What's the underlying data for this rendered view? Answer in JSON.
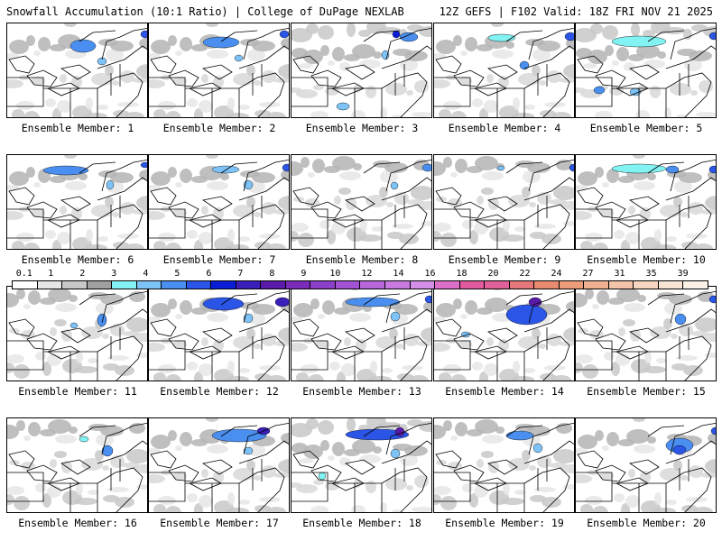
{
  "header": {
    "left": "Snowfall Accumulation (10:1 Ratio) | College of DuPage NEXLAB",
    "right": "12Z GEFS | F102 Valid: 18Z FRI NOV 21 2025"
  },
  "legend": {
    "labels": [
      "0.1",
      "1",
      "2",
      "3",
      "4",
      "5",
      "6",
      "7",
      "8",
      "9",
      "10",
      "12",
      "14",
      "16",
      "18",
      "20",
      "22",
      "24",
      "27",
      "31",
      "35",
      "39"
    ],
    "colors": [
      "#ffffff",
      "#e6e6e6",
      "#c8c8c8",
      "#a0a0a0",
      "#82f2f2",
      "#7ec3f7",
      "#4a8ff0",
      "#2b55e6",
      "#0a1ed8",
      "#3b1fb8",
      "#5a1aa8",
      "#7a2bb8",
      "#8c3fc8",
      "#a352d4",
      "#b766dc",
      "#c87ae0",
      "#d48ee8",
      "#de6fc8",
      "#e05aa0",
      "#e0609a",
      "#e5767a",
      "#e88a70",
      "#ec9c78",
      "#f0b090",
      "#f3c4a8",
      "#f6d6c0",
      "#f8e4d4",
      "#faf0e6"
    ]
  },
  "members": [
    {
      "label": "Ensemble Member: 1",
      "snow": [
        [
          70,
          18,
          28,
          14,
          "#4a8ff0"
        ],
        [
          100,
          38,
          10,
          8,
          "#7ec3f7"
        ],
        [
          148,
          8,
          10,
          8,
          "#2b55e6"
        ]
      ]
    },
    {
      "label": "Ensemble Member: 2",
      "snow": [
        [
          60,
          15,
          40,
          12,
          "#4a8ff0"
        ],
        [
          95,
          35,
          9,
          7,
          "#7ec3f7"
        ],
        [
          145,
          8,
          10,
          8,
          "#2b55e6"
        ]
      ]
    },
    {
      "label": "Ensemble Member: 3",
      "snow": [
        [
          120,
          10,
          20,
          10,
          "#4a8ff0"
        ],
        [
          112,
          8,
          8,
          8,
          "#0a1ed8"
        ],
        [
          50,
          88,
          14,
          8,
          "#7ec3f7"
        ],
        [
          100,
          30,
          8,
          10,
          "#7ec3f7"
        ]
      ]
    },
    {
      "label": "Ensemble Member: 4",
      "snow": [
        [
          60,
          12,
          30,
          8,
          "#82f2f2"
        ],
        [
          95,
          42,
          10,
          9,
          "#4a8ff0"
        ],
        [
          145,
          10,
          12,
          9,
          "#2b55e6"
        ]
      ]
    },
    {
      "label": "Ensemble Member: 5",
      "snow": [
        [
          40,
          14,
          60,
          12,
          "#82f2f2"
        ],
        [
          20,
          70,
          12,
          8,
          "#4a8ff0"
        ],
        [
          60,
          72,
          12,
          8,
          "#7ec3f7"
        ],
        [
          148,
          10,
          10,
          8,
          "#2b55e6"
        ]
      ]
    },
    {
      "label": "Ensemble Member: 6",
      "snow": [
        [
          40,
          12,
          50,
          10,
          "#4a8ff0"
        ],
        [
          110,
          28,
          8,
          10,
          "#7ec3f7"
        ],
        [
          148,
          8,
          10,
          6,
          "#2b55e6"
        ]
      ]
    },
    {
      "label": "Ensemble Member: 7",
      "snow": [
        [
          70,
          12,
          30,
          8,
          "#7ec3f7"
        ],
        [
          105,
          28,
          10,
          10,
          "#7ec3f7"
        ],
        [
          148,
          10,
          10,
          8,
          "#2b55e6"
        ]
      ]
    },
    {
      "label": "Ensemble Member: 8",
      "snow": [
        [
          110,
          30,
          8,
          8,
          "#7ec3f7"
        ],
        [
          145,
          10,
          12,
          8,
          "#4a8ff0"
        ]
      ]
    },
    {
      "label": "Ensemble Member: 9",
      "snow": [
        [
          70,
          12,
          8,
          5,
          "#7ec3f7"
        ],
        [
          150,
          10,
          10,
          8,
          "#2b55e6"
        ]
      ]
    },
    {
      "label": "Ensemble Member: 10",
      "snow": [
        [
          40,
          10,
          60,
          10,
          "#82f2f2"
        ],
        [
          100,
          12,
          14,
          8,
          "#4a8ff0"
        ],
        [
          148,
          12,
          10,
          8,
          "#2b55e6"
        ]
      ]
    },
    {
      "label": "Ensemble Member: 11",
      "snow": [
        [
          100,
          30,
          10,
          14,
          "#4a8ff0"
        ],
        [
          70,
          40,
          8,
          6,
          "#7ec3f7"
        ]
      ]
    },
    {
      "label": "Ensemble Member: 12",
      "snow": [
        [
          60,
          12,
          45,
          14,
          "#2b55e6"
        ],
        [
          140,
          12,
          16,
          10,
          "#3b1fb8"
        ],
        [
          105,
          30,
          10,
          10,
          "#7ec3f7"
        ]
      ]
    },
    {
      "label": "Ensemble Member: 13",
      "snow": [
        [
          60,
          12,
          60,
          10,
          "#4a8ff0"
        ],
        [
          110,
          28,
          10,
          10,
          "#7ec3f7"
        ],
        [
          148,
          10,
          10,
          8,
          "#2b55e6"
        ]
      ]
    },
    {
      "label": "Ensemble Member: 14",
      "snow": [
        [
          80,
          20,
          45,
          22,
          "#2b55e6"
        ],
        [
          105,
          12,
          14,
          10,
          "#5a1aa8"
        ],
        [
          30,
          50,
          10,
          6,
          "#7ec3f7"
        ]
      ]
    },
    {
      "label": "Ensemble Member: 15",
      "snow": [
        [
          110,
          30,
          12,
          12,
          "#4a8ff0"
        ],
        [
          148,
          10,
          10,
          8,
          "#2b55e6"
        ]
      ]
    },
    {
      "label": "Ensemble Member: 16",
      "snow": [
        [
          105,
          30,
          12,
          12,
          "#4a8ff0"
        ],
        [
          80,
          20,
          10,
          6,
          "#82f2f2"
        ]
      ]
    },
    {
      "label": "Ensemble Member: 17",
      "snow": [
        [
          70,
          12,
          60,
          14,
          "#4a8ff0"
        ],
        [
          120,
          10,
          14,
          8,
          "#3b1fb8"
        ],
        [
          105,
          32,
          10,
          8,
          "#7ec3f7"
        ]
      ]
    },
    {
      "label": "Ensemble Member: 18",
      "snow": [
        [
          60,
          12,
          70,
          12,
          "#2b55e6"
        ],
        [
          115,
          10,
          10,
          10,
          "#5a1aa8"
        ],
        [
          30,
          60,
          8,
          8,
          "#82f2f2"
        ],
        [
          110,
          34,
          10,
          10,
          "#7ec3f7"
        ]
      ]
    },
    {
      "label": "Ensemble Member: 19",
      "snow": [
        [
          80,
          14,
          30,
          10,
          "#4a8ff0"
        ],
        [
          110,
          28,
          10,
          10,
          "#7ec3f7"
        ]
      ]
    },
    {
      "label": "Ensemble Member: 20",
      "snow": [
        [
          100,
          22,
          30,
          16,
          "#4a8ff0"
        ],
        [
          108,
          30,
          14,
          10,
          "#2b55e6"
        ],
        [
          150,
          10,
          10,
          8,
          "#2b55e6"
        ]
      ]
    }
  ]
}
